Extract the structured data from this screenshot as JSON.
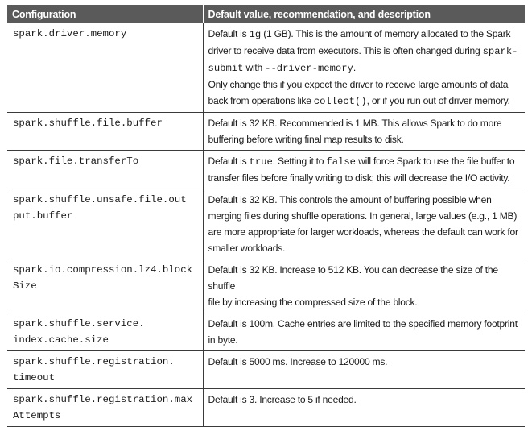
{
  "table": {
    "headers": {
      "configuration": "Configuration",
      "description": "Default value, recommendation, and description"
    },
    "rows": [
      {
        "config": [
          "spark.driver.memory"
        ],
        "desc": [
          [
            {
              "t": "Default is "
            },
            {
              "c": "1g"
            },
            {
              "t": " (1 GB). This is the amount of memory allocated to the Spark"
            }
          ],
          [
            {
              "t": "driver to receive data from executors. This is often changed during "
            },
            {
              "c": "spark-"
            }
          ],
          [
            {
              "c": "submit"
            },
            {
              "t": " with "
            },
            {
              "c": "--driver-memory"
            },
            {
              "t": "."
            }
          ],
          [
            {
              "t": "Only change this if you expect the driver to receive large amounts of data"
            }
          ],
          [
            {
              "t": "back from operations like "
            },
            {
              "c": "collect()"
            },
            {
              "t": ", or if you run out of driver memory."
            }
          ]
        ]
      },
      {
        "config": [
          "spark.shuffle.file.buffer"
        ],
        "desc": [
          [
            {
              "t": "Default is 32 KB. Recommended is 1 MB. This allows Spark to do more"
            }
          ],
          [
            {
              "t": "buffering before writing final map results to disk."
            }
          ]
        ]
      },
      {
        "config": [
          "spark.file.transferTo"
        ],
        "desc": [
          [
            {
              "t": "Default is "
            },
            {
              "c": "true"
            },
            {
              "t": ". Setting it to "
            },
            {
              "c": "false"
            },
            {
              "t": " will force Spark to use the file buffer to"
            }
          ],
          [
            {
              "t": "transfer files before finally writing to disk; this will decrease the I/O activity."
            }
          ]
        ]
      },
      {
        "config": [
          "spark.shuffle.unsafe.file.out",
          "put.buffer"
        ],
        "desc": [
          [
            {
              "t": "Default is 32 KB. This controls the amount of buffering possible when"
            }
          ],
          [
            {
              "t": "merging files during shuffle operations. In general, large values (e.g., 1 MB)"
            }
          ],
          [
            {
              "t": "are more appropriate for larger workloads, whereas the default can work for"
            }
          ],
          [
            {
              "t": "smaller workloads."
            }
          ]
        ]
      },
      {
        "config": [
          "spark.io.compression.lz4.block",
          "Size"
        ],
        "desc": [
          [
            {
              "t": "Default is 32 KB. Increase to 512 KB. You can decrease the size of the shuffle"
            }
          ],
          [
            {
              "t": "file by increasing the compressed size of the block."
            }
          ]
        ]
      },
      {
        "config": [
          "spark.shuffle.service.",
          "index.cache.size"
        ],
        "desc": [
          [
            {
              "t": "Default is 100m. Cache entries are limited to the specified memory footprint"
            }
          ],
          [
            {
              "t": "in byte."
            }
          ]
        ]
      },
      {
        "config": [
          "spark.shuffle.registration.",
          "timeout"
        ],
        "desc": [
          [
            {
              "t": "Default is 5000 ms. Increase to 120000 ms."
            }
          ]
        ]
      },
      {
        "config": [
          "spark.shuffle.registration.max",
          "Attempts"
        ],
        "desc": [
          [
            {
              "t": "Default is 3. Increase to 5 if needed."
            }
          ]
        ]
      }
    ]
  }
}
